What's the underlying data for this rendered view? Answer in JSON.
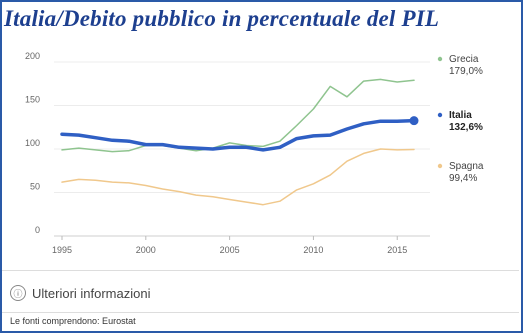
{
  "title": "Italia/Debito pubblico in percentuale del PIL",
  "more_info": {
    "label": "Ulteriori informazioni",
    "icon": "info-icon"
  },
  "source": "Le fonti comprendono: Eurostat",
  "chart_data": {
    "type": "line",
    "title": "Italia/Debito pubblico in percentuale del PIL",
    "xlim": [
      1995,
      2016
    ],
    "ylim": [
      0,
      200
    ],
    "x_ticks": [
      "1995",
      "2000",
      "2005",
      "2010",
      "2015"
    ],
    "y_ticks": [
      "0",
      "50",
      "100",
      "150",
      "200"
    ],
    "grid": "horizontal",
    "legend_placement": "right",
    "x": [
      1995,
      1996,
      1997,
      1998,
      1999,
      2000,
      2001,
      2002,
      2003,
      2004,
      2005,
      2006,
      2007,
      2008,
      2009,
      2010,
      2011,
      2012,
      2013,
      2014,
      2015,
      2016
    ],
    "series": [
      {
        "name": "Grecia",
        "label_value": "179,0%",
        "color": "#8fc48f",
        "width": 1.5,
        "values": [
          99,
          101,
          99,
          97,
          98,
          104,
          104,
          101,
          98,
          101,
          107,
          104,
          103,
          109,
          127,
          146,
          172,
          160,
          178,
          180,
          177,
          179
        ]
      },
      {
        "name": "Italia",
        "label_value": "132,6%",
        "color": "#2f5fc4",
        "width": 3.5,
        "values": [
          117,
          116,
          113,
          110,
          109,
          105,
          105,
          102,
          101,
          100,
          102,
          102,
          99,
          102,
          112,
          115,
          116,
          123,
          129,
          132,
          132,
          132.6
        ]
      },
      {
        "name": "Spagna",
        "label_value": "99,4%",
        "color": "#f0c88c",
        "width": 1.5,
        "values": [
          62,
          65,
          64,
          62,
          61,
          58,
          54,
          51,
          47,
          45,
          42,
          39,
          36,
          40,
          53,
          60,
          70,
          86,
          95,
          100,
          99,
          99.4
        ]
      }
    ]
  }
}
